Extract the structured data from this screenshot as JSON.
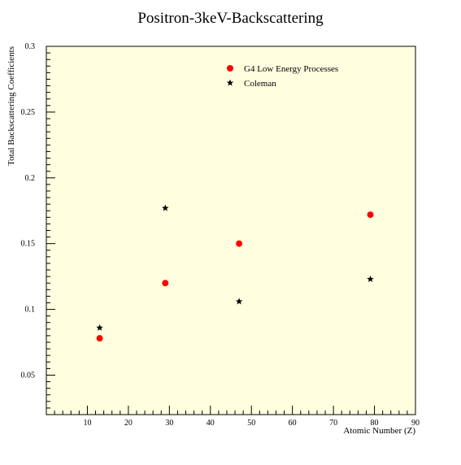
{
  "chart_data": {
    "type": "scatter",
    "title": "Positron-3keV-Backscattering",
    "xlabel": "Atomic Number (Z)",
    "ylabel": "Total Backscattering Coefficients",
    "xlim": [
      0,
      90
    ],
    "ylim": [
      0.02,
      0.3
    ],
    "x_ticks": [
      10,
      20,
      30,
      40,
      50,
      60,
      70,
      80,
      90
    ],
    "x_tick_labels": [
      "10",
      "20",
      "30",
      "40",
      "50",
      "60",
      "70",
      "80",
      "90"
    ],
    "y_ticks": [
      0.05,
      0.1,
      0.15,
      0.2,
      0.25,
      0.3
    ],
    "y_tick_labels": [
      "0.05",
      "0.1",
      "0.15",
      "0.2",
      "0.25",
      "0.3"
    ],
    "grid": false,
    "legend_position": "top-right",
    "background_color": "#ffffe0",
    "series": [
      {
        "name": "G4 Low Energy Processes",
        "marker": "circle",
        "color": "#ff0000",
        "points": [
          {
            "x": 13,
            "y": 0.078
          },
          {
            "x": 29,
            "y": 0.12
          },
          {
            "x": 47,
            "y": 0.15
          },
          {
            "x": 79,
            "y": 0.172
          }
        ]
      },
      {
        "name": "Coleman",
        "marker": "star",
        "color": "#000000",
        "points": [
          {
            "x": 13,
            "y": 0.086
          },
          {
            "x": 29,
            "y": 0.177
          },
          {
            "x": 47,
            "y": 0.106
          },
          {
            "x": 79,
            "y": 0.123
          }
        ]
      }
    ]
  }
}
